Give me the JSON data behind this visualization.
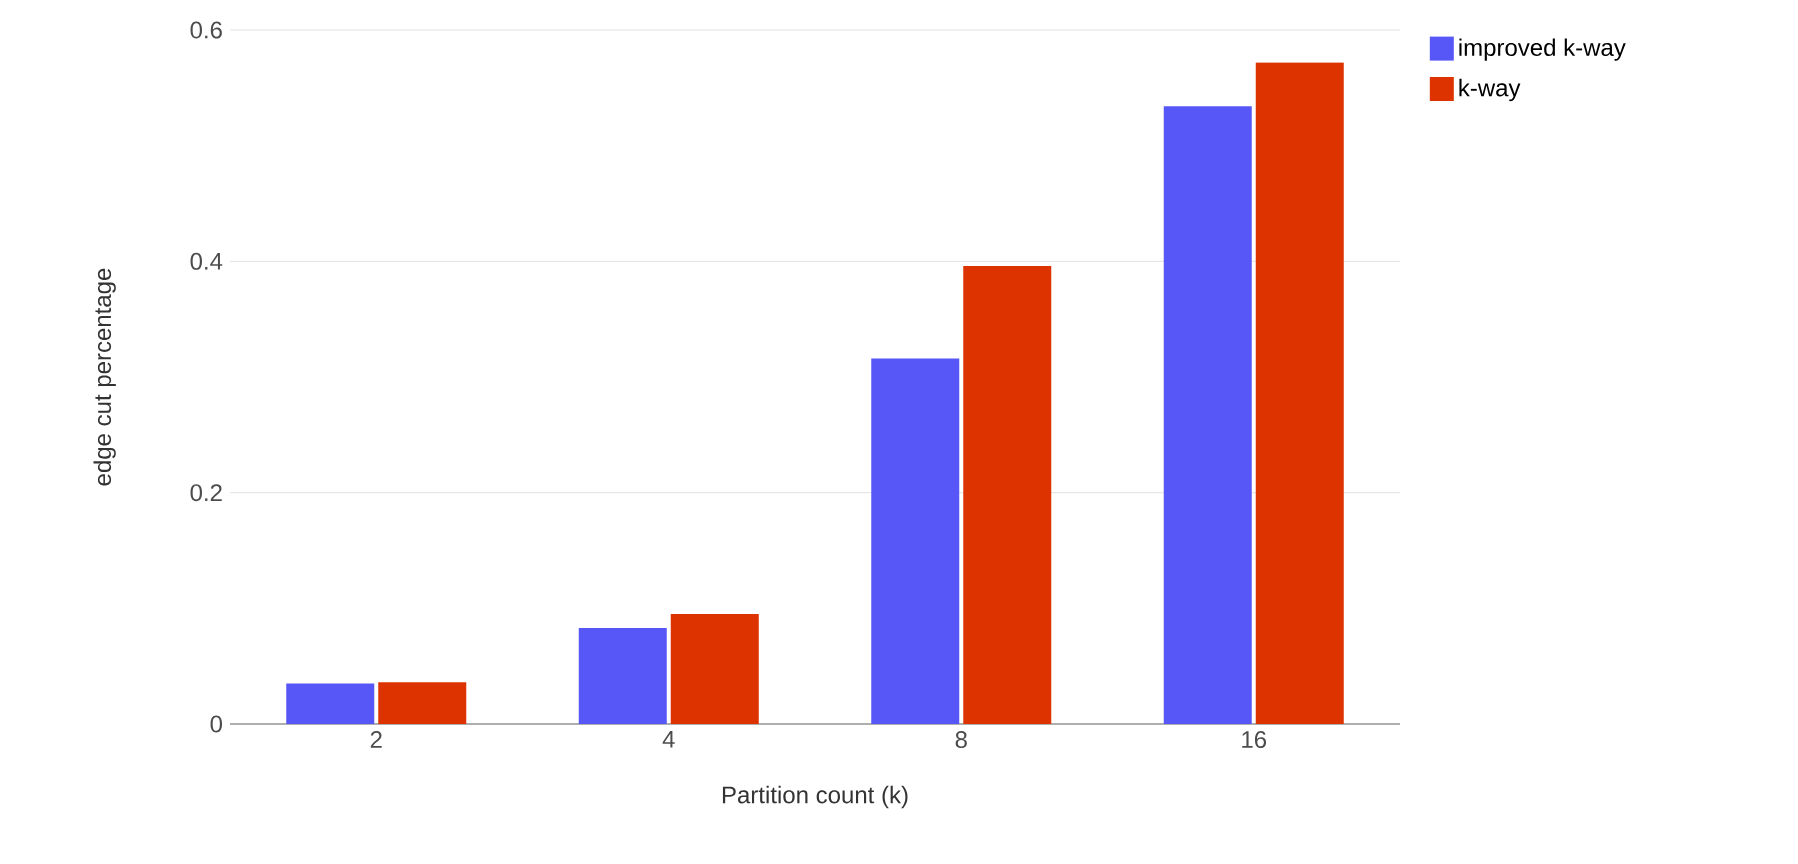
{
  "chart_data": {
    "type": "bar",
    "xlabel": "Partition count (k)",
    "ylabel": "edge cut percentage",
    "categories": [
      "2",
      "4",
      "8",
      "16"
    ],
    "series": [
      {
        "name": "improved k-way",
        "color": "#5757f7",
        "values": [
          0.035,
          0.083,
          0.316,
          0.534
        ]
      },
      {
        "name": "k-way",
        "color": "#dd3300",
        "values": [
          0.036,
          0.095,
          0.396,
          0.572
        ]
      }
    ],
    "ylim": [
      0,
      0.6
    ],
    "yticks": [
      0,
      0.2,
      0.4,
      0.6
    ],
    "grid": "y",
    "legend": "top right"
  }
}
